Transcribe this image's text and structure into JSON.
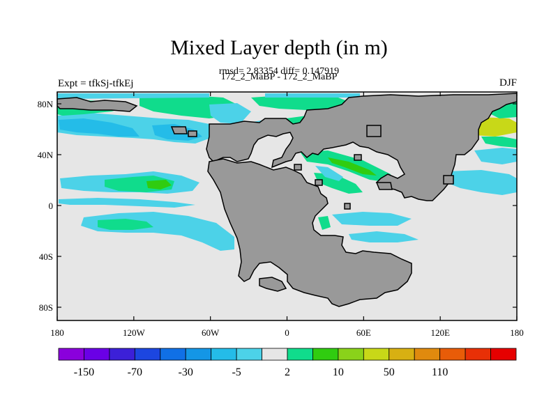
{
  "figure": {
    "title": "Mixed Layer depth (in m)",
    "stats": "rmsd= 2.83354  diff= 0.147919",
    "cases": "172_2_MaBP - 172_2_MaBP",
    "left_label": "Expt = tfkSj-tfkEj",
    "right_label": "DJF"
  },
  "axes": {
    "lat_ticks": [
      "80N",
      "40N",
      "0",
      "40S",
      "80S"
    ],
    "lon_ticks": [
      "180",
      "120W",
      "60W",
      "0",
      "60E",
      "120E",
      "180"
    ]
  },
  "colors": {
    "land": "#999999",
    "ocean_neutral": "#e6e6e6",
    "coast": "#000000"
  },
  "colorbar": {
    "colors": [
      "#8a00dc",
      "#6a00e6",
      "#3c20d8",
      "#1c46e0",
      "#1070e6",
      "#1496e6",
      "#24bce8",
      "#4cd2e8",
      "#e6e6e6",
      "#10dc8c",
      "#30cc10",
      "#8ad21a",
      "#c8d818",
      "#d8b012",
      "#e08a0e",
      "#e85c08",
      "#e83006",
      "#e60000"
    ],
    "labels": [
      "-150",
      "-70",
      "-30",
      "-5",
      "2",
      "10",
      "50",
      "110"
    ]
  }
}
